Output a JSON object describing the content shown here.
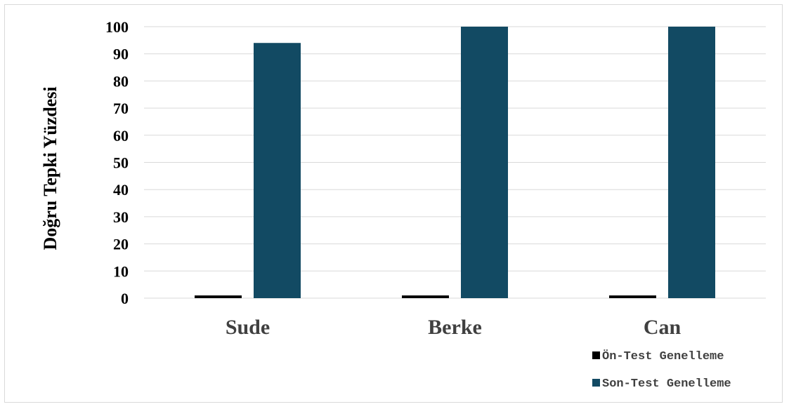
{
  "chart_data": {
    "type": "bar",
    "ylabel": "Doğru Tepki Yüzdesi",
    "xlabel": "",
    "categories": [
      "Sude",
      "Berke",
      "Can"
    ],
    "ylim": [
      0,
      100
    ],
    "yticks": [
      0,
      10,
      20,
      30,
      40,
      50,
      60,
      70,
      80,
      90,
      100
    ],
    "grid": true,
    "legend_position": "bottom-right",
    "series": [
      {
        "name": "Ön-Test Genelleme",
        "values": [
          1,
          1,
          1
        ],
        "color": "#000000"
      },
      {
        "name": "Son-Test Genelleme",
        "values": [
          94,
          100,
          100
        ],
        "color": "#124a63"
      }
    ]
  }
}
